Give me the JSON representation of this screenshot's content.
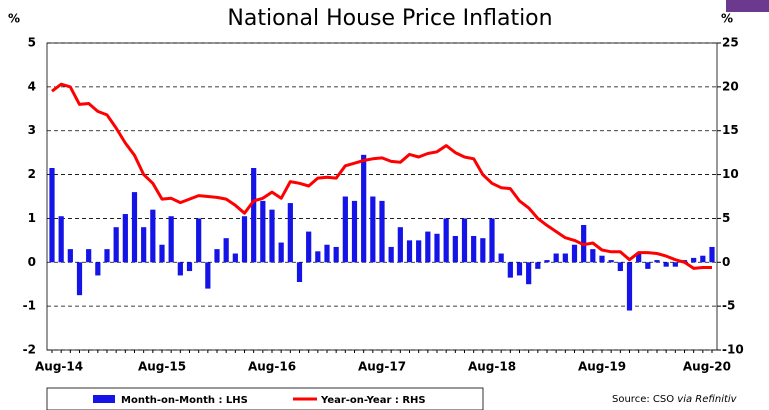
{
  "chart_data": {
    "type": "bar-line",
    "title": "National House Price Inflation",
    "y_label": "%",
    "y2_label": "%",
    "categories": [
      "Aug-14",
      null,
      null,
      null,
      null,
      null,
      null,
      null,
      null,
      null,
      null,
      null,
      "Aug-15",
      null,
      null,
      null,
      null,
      null,
      null,
      null,
      null,
      null,
      null,
      null,
      "Aug-16",
      null,
      null,
      null,
      null,
      null,
      null,
      null,
      null,
      null,
      null,
      null,
      "Aug-17",
      null,
      null,
      null,
      null,
      null,
      null,
      null,
      null,
      null,
      null,
      null,
      "Aug-18",
      null,
      null,
      null,
      null,
      null,
      null,
      null,
      null,
      null,
      null,
      null,
      "Aug-19",
      null,
      null,
      null,
      null,
      null,
      null,
      null,
      null,
      null,
      null,
      null,
      "Aug-20"
    ],
    "series": [
      {
        "name": "Month-on-Month : LHS",
        "type": "bar",
        "color": "#1414e6",
        "values": [
          2.15,
          1.05,
          0.3,
          -0.75,
          0.3,
          -0.3,
          0.3,
          0.8,
          1.1,
          1.6,
          0.8,
          1.2,
          0.4,
          1.05,
          -0.3,
          -0.2,
          1.0,
          -0.6,
          0.3,
          0.55,
          0.2,
          1.05,
          2.15,
          1.4,
          1.2,
          0.45,
          1.35,
          -0.45,
          0.7,
          0.25,
          0.4,
          0.35,
          1.5,
          1.4,
          2.45,
          1.5,
          1.4,
          0.35,
          0.8,
          0.5,
          0.5,
          0.7,
          0.65,
          1.0,
          0.6,
          1.0,
          0.6,
          0.55,
          1.0,
          0.2,
          -0.35,
          -0.3,
          -0.5,
          -0.15,
          0.05,
          0.2,
          0.2,
          0.4,
          0.85,
          0.3,
          0.15,
          0.05,
          -0.2,
          -1.1,
          0.2,
          -0.15,
          0.05,
          -0.1,
          -0.1,
          0.05,
          0.1,
          0.15,
          0.35
        ]
      },
      {
        "name": "Year-on-Year : RHS",
        "type": "line",
        "axis": "y2",
        "color": "#ff0000",
        "values": [
          19.5,
          20.3,
          20.0,
          18.0,
          18.1,
          17.2,
          16.8,
          15.3,
          13.6,
          12.2,
          10.0,
          9.0,
          7.2,
          7.3,
          6.8,
          7.2,
          7.6,
          7.5,
          7.4,
          7.2,
          6.5,
          5.6,
          7.0,
          7.3,
          8.0,
          7.3,
          9.2,
          9.0,
          8.7,
          9.6,
          9.7,
          9.6,
          11.0,
          11.3,
          11.6,
          11.8,
          11.9,
          11.5,
          11.4,
          12.3,
          12.0,
          12.4,
          12.6,
          13.3,
          12.5,
          12.0,
          11.8,
          10.0,
          9.0,
          8.5,
          8.4,
          7.0,
          6.2,
          5.0,
          4.2,
          3.5,
          2.8,
          2.5,
          2.0,
          2.2,
          1.4,
          1.2,
          1.2,
          0.3,
          1.1,
          1.1,
          1.0,
          0.7,
          0.3,
          0.0,
          -0.7,
          -0.6,
          -0.6
        ]
      }
    ],
    "ylim": [
      -2,
      5
    ],
    "yticks": [
      -2,
      -1,
      0,
      1,
      2,
      3,
      4,
      5
    ],
    "y2lim": [
      -10,
      25
    ],
    "y2ticks": [
      -10,
      -5,
      0,
      5,
      10,
      15,
      20,
      25
    ],
    "grid": true,
    "legend": "bottom",
    "source": "Source: CSO",
    "source_via": "via Refinitiv"
  }
}
